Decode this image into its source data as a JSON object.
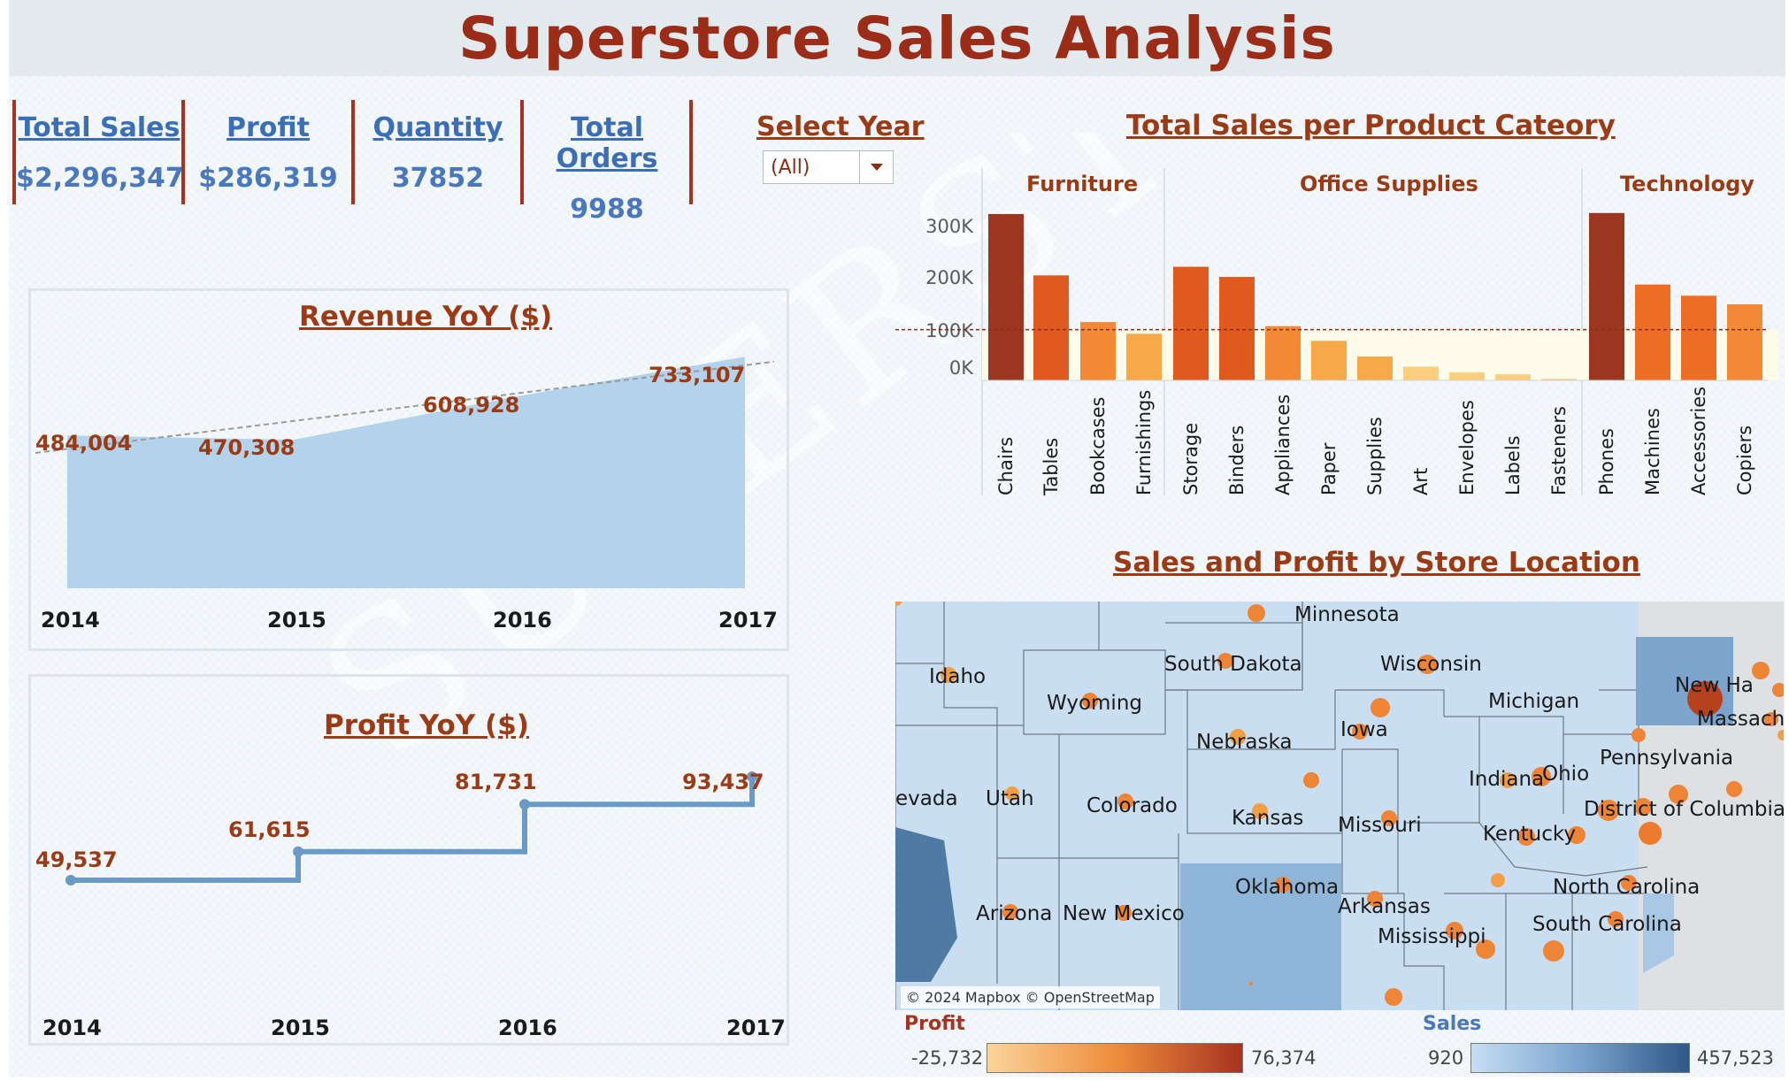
{
  "title": "Superstore Sales Analysis",
  "watermark_text": "SUPERSTORE",
  "kpis": [
    {
      "label": "Total Sales",
      "value": "$2,296,347"
    },
    {
      "label": "Profit",
      "value": "$286,319"
    },
    {
      "label": "Quantity",
      "value": "37852"
    },
    {
      "label": "Total Orders",
      "value": "9988"
    }
  ],
  "year_filter": {
    "label": "Select Year",
    "selected": "(All)"
  },
  "revenue_chart": {
    "title": "Revenue YoY ($)",
    "years": [
      "2014",
      "2015",
      "2016",
      "2017"
    ],
    "value_labels": [
      "484,004",
      "470,308",
      "608,928",
      "733,107"
    ]
  },
  "profit_chart": {
    "title": "Profit YoY ($)",
    "years": [
      "2014",
      "2015",
      "2016",
      "2017"
    ],
    "value_labels": [
      "49,537",
      "61,615",
      "81,731",
      "93,437"
    ]
  },
  "category_chart": {
    "title": "Total Sales per Product Cateory",
    "groups": [
      "Furniture",
      "Office Supplies",
      "Technology"
    ],
    "y_ticks": [
      "300K",
      "200K",
      "100K",
      "0K"
    ]
  },
  "map": {
    "title": "Sales and Profit by Store Location",
    "attribution": "© 2024 Mapbox © OpenStreetMap",
    "states": [
      "Minnesota",
      "Idaho",
      "South Dakota",
      "Wisconsin",
      "Wyoming",
      "Michigan",
      "New Ha",
      "Massach",
      "Iowa",
      "Nebraska",
      "Pennsylvania",
      "Indiana",
      "Ohio",
      "evada",
      "Utah",
      "Colorado",
      "Kansas",
      "Missouri",
      "District of Columbia",
      "Kentucky",
      "Oklahoma",
      "North Carolina",
      "Arkansas",
      "Arizona",
      "New Mexico",
      "South Carolina",
      "Mississippi"
    ],
    "profit_legend": {
      "title": "Profit",
      "min": "-25,732",
      "max": "76,374"
    },
    "sales_legend": {
      "title": "Sales",
      "min": "920",
      "max": "457,523"
    }
  },
  "colors": {
    "title": "#9b2c17",
    "kpi_text": "#3a6fb8",
    "accent_orange": "#9b3b16",
    "area_fill": "#b3d3ec",
    "step_line": "#6b9ac6"
  },
  "chart_data": [
    {
      "type": "area",
      "title": "Revenue YoY ($)",
      "x": [
        "2014",
        "2015",
        "2016",
        "2017"
      ],
      "values": [
        484004,
        470308,
        608928,
        733107
      ],
      "trend_line": true,
      "ylim": [
        0,
        800000
      ]
    },
    {
      "type": "line",
      "step": true,
      "title": "Profit YoY ($)",
      "x": [
        "2014",
        "2015",
        "2016",
        "2017"
      ],
      "values": [
        49537,
        61615,
        81731,
        93437
      ],
      "ylim": [
        0,
        110000
      ]
    },
    {
      "type": "bar",
      "title": "Total Sales per Product Cateory",
      "reference_line": 100000,
      "ylim": [
        0,
        350000
      ],
      "categories": [
        {
          "group": "Furniture",
          "name": "Chairs",
          "value": 328000
        },
        {
          "group": "Furniture",
          "name": "Tables",
          "value": 207000
        },
        {
          "group": "Furniture",
          "name": "Bookcases",
          "value": 115000
        },
        {
          "group": "Furniture",
          "name": "Furnishings",
          "value": 92000
        },
        {
          "group": "Office Supplies",
          "name": "Storage",
          "value": 224000
        },
        {
          "group": "Office Supplies",
          "name": "Binders",
          "value": 204000
        },
        {
          "group": "Office Supplies",
          "name": "Appliances",
          "value": 107000
        },
        {
          "group": "Office Supplies",
          "name": "Paper",
          "value": 78000
        },
        {
          "group": "Office Supplies",
          "name": "Supplies",
          "value": 47000
        },
        {
          "group": "Office Supplies",
          "name": "Art",
          "value": 27000
        },
        {
          "group": "Office Supplies",
          "name": "Envelopes",
          "value": 16000
        },
        {
          "group": "Office Supplies",
          "name": "Labels",
          "value": 12000
        },
        {
          "group": "Office Supplies",
          "name": "Fasteners",
          "value": 3000
        },
        {
          "group": "Technology",
          "name": "Phones",
          "value": 330000
        },
        {
          "group": "Technology",
          "name": "Machines",
          "value": 189000
        },
        {
          "group": "Technology",
          "name": "Accessories",
          "value": 167000
        },
        {
          "group": "Technology",
          "name": "Copiers",
          "value": 150000
        }
      ]
    }
  ]
}
